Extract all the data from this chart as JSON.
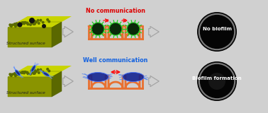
{
  "bg_color": "#d0d0d0",
  "surface_top_color": "#c8d400",
  "surface_front_color": "#8a9400",
  "surface_right_color": "#5a6800",
  "cup_color": "#e87030",
  "bacteria_round_fill": "#0a2a0a",
  "bacteria_round_edge": "#22cc22",
  "bacteria_rod_fill": "#102090",
  "bacteria_rod_edge": "#4080ff",
  "arrow_face": "#d0d0d0",
  "arrow_edge": "#a0a0a0",
  "no_comm_color": "#dd0000",
  "well_comm_color": "#1060e0",
  "label_color": "#ffffff",
  "struct_label": "Structured surface",
  "no_comm_label": "No communication",
  "well_comm_label": "Well communication",
  "no_biofilm_label": "No biofilm",
  "biofilm_label": "Biofilm formation"
}
